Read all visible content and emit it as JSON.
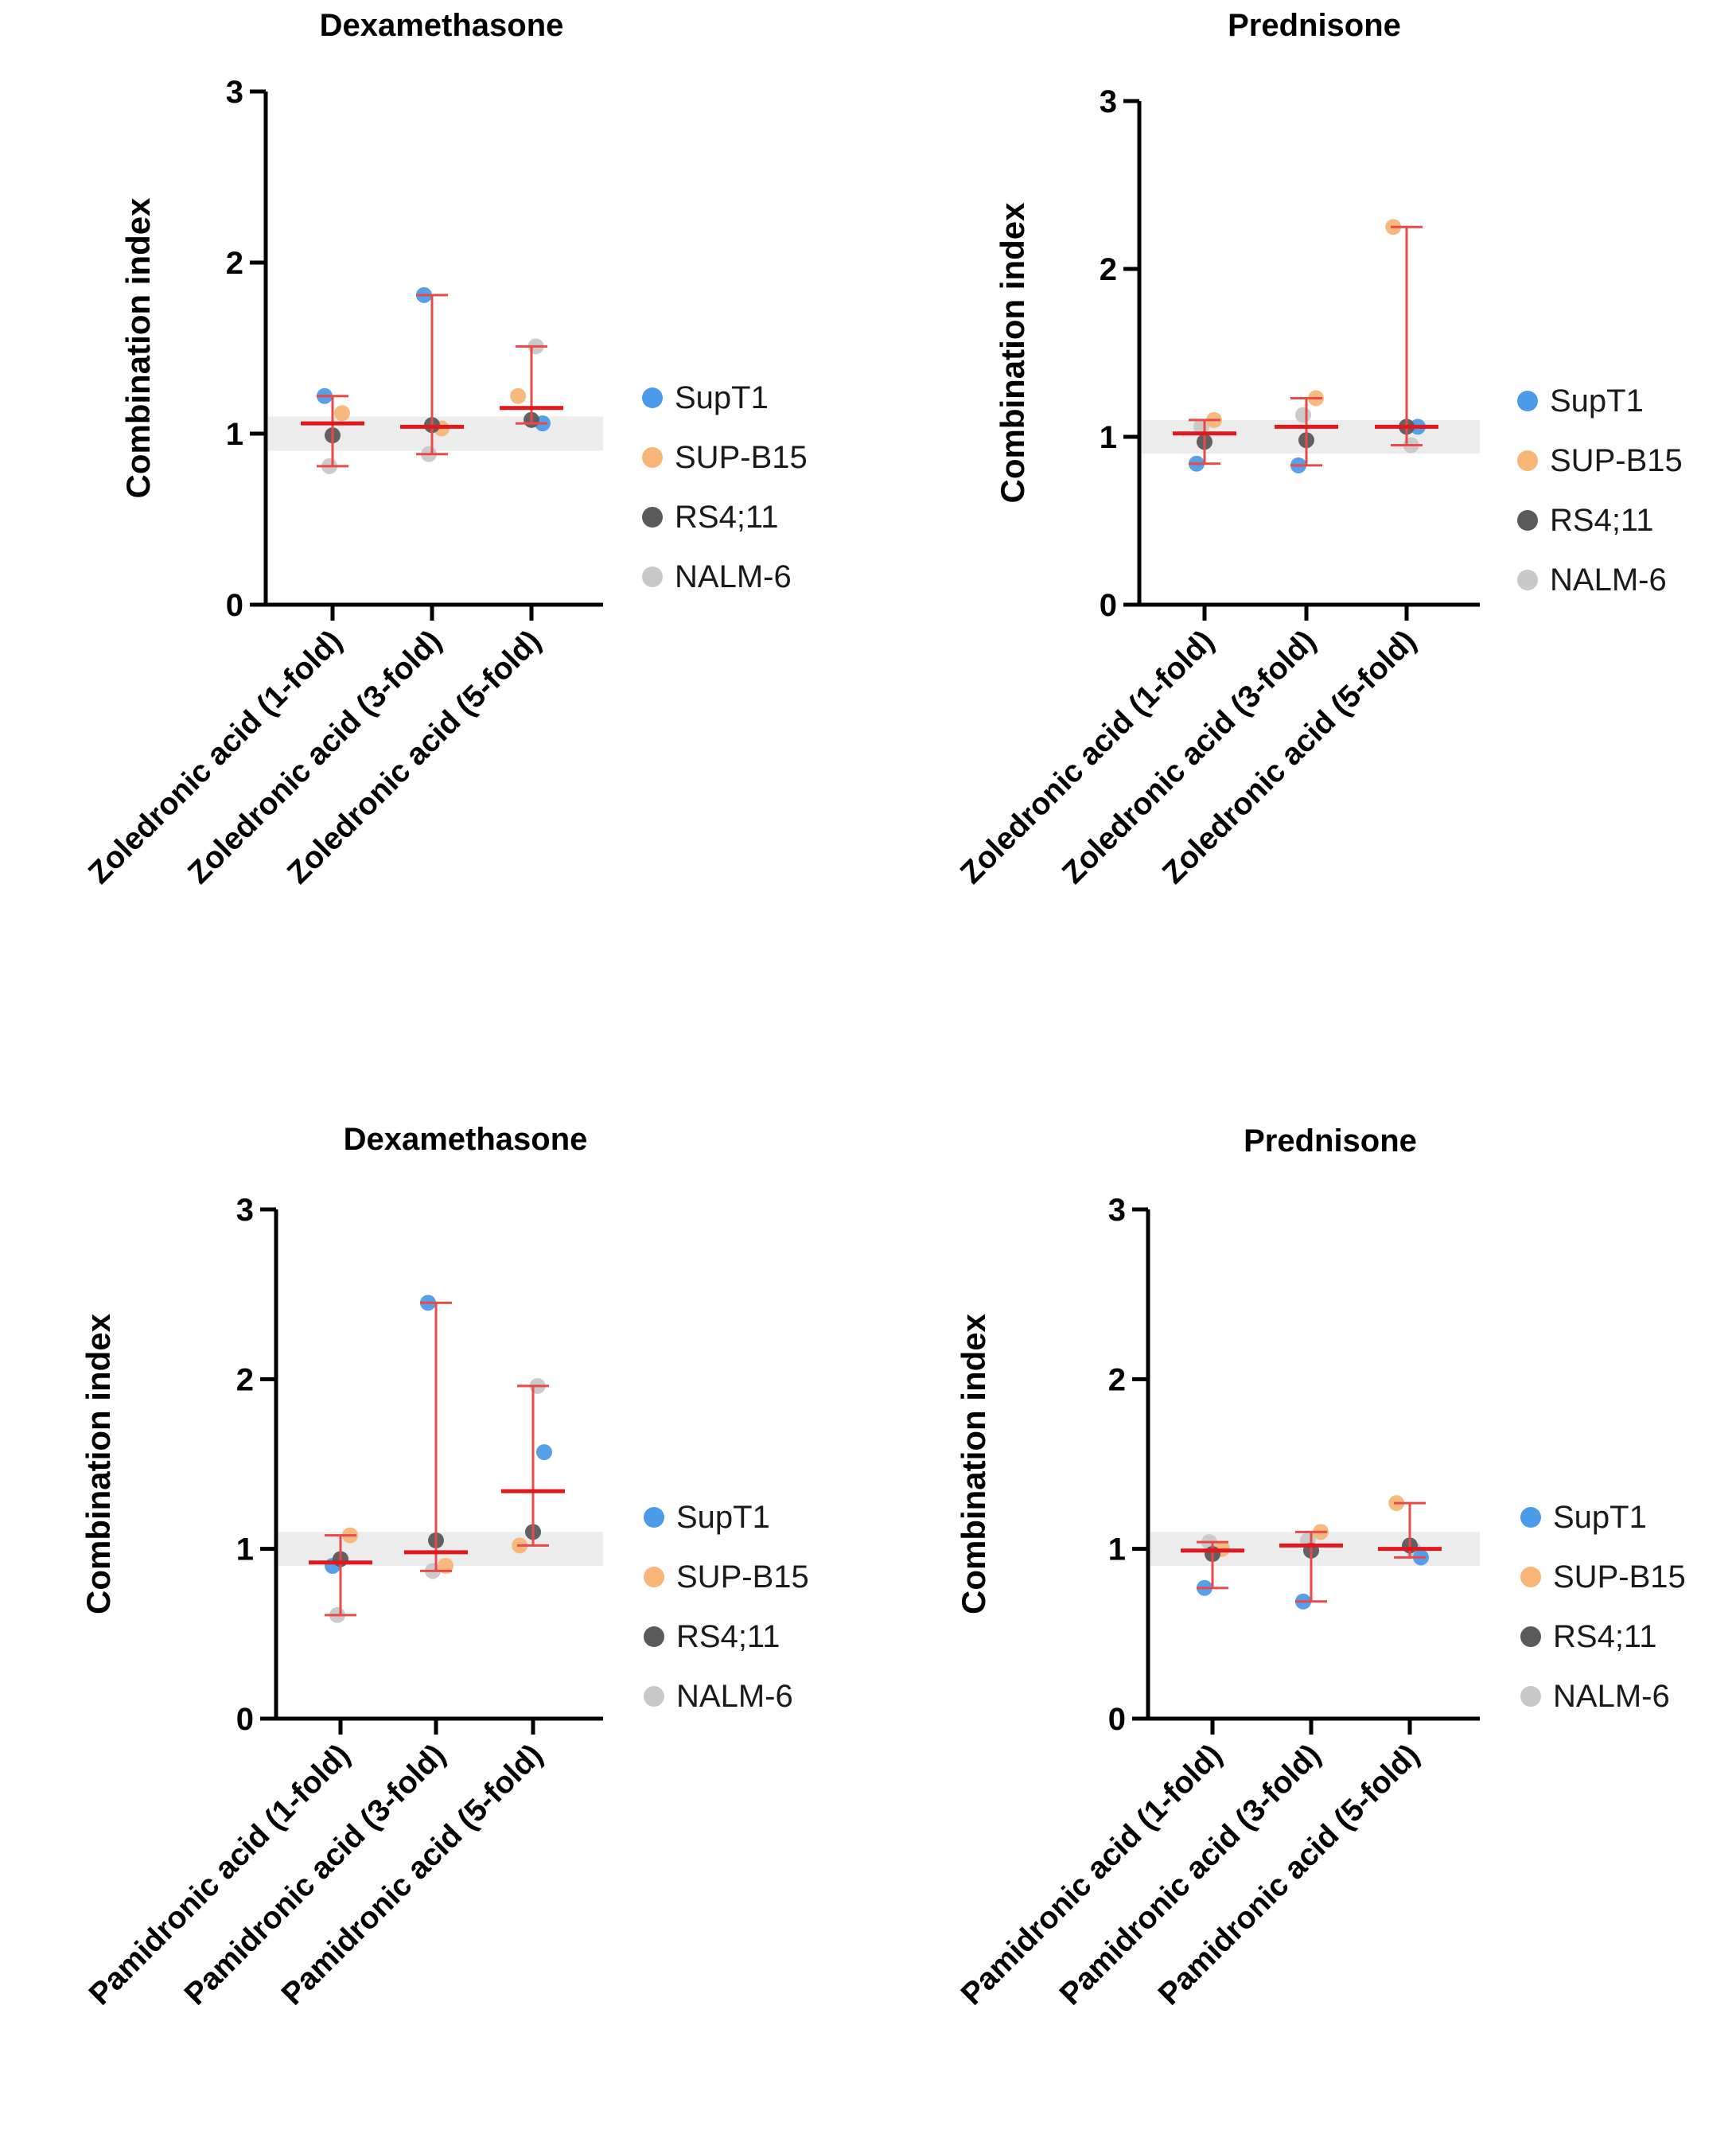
{
  "legend": [
    {
      "name": "SupT1",
      "color": "#4c9be8"
    },
    {
      "name": "SUP-B15",
      "color": "#f7b577"
    },
    {
      "name": "RS4;11",
      "color": "#5a5a5a"
    },
    {
      "name": "NALM-6",
      "color": "#c8c8c8"
    }
  ],
  "colors": {
    "median": "#e0191c",
    "range": "#e84a4a",
    "band": "#ececec",
    "axis": "#000000"
  },
  "chart_data": [
    {
      "type": "scatter",
      "title": "Dexamethasone",
      "ylabel": "Combination index",
      "ylim": [
        0,
        3
      ],
      "yticks": [
        "0",
        "1",
        "2",
        "3"
      ],
      "band": [
        0.9,
        1.1
      ],
      "categories": [
        "Zoledronic acid (1-fold)",
        "Zoledronic acid (3-fold)",
        "Zoledronic acid (5-fold)"
      ],
      "series": [
        {
          "name": "SupT1",
          "values": [
            1.22,
            1.81,
            1.06
          ]
        },
        {
          "name": "SUP-B15",
          "values": [
            1.12,
            1.03,
            1.22
          ]
        },
        {
          "name": "RS4;11",
          "values": [
            0.99,
            1.05,
            1.08
          ]
        },
        {
          "name": "NALM-6",
          "values": [
            0.81,
            0.88,
            1.51
          ]
        }
      ],
      "median": [
        1.06,
        1.04,
        1.15
      ],
      "range": [
        [
          0.81,
          1.22
        ],
        [
          0.88,
          1.81
        ],
        [
          1.06,
          1.51
        ]
      ]
    },
    {
      "type": "scatter",
      "title": "Prednisone",
      "ylabel": "Combination index",
      "ylim": [
        0,
        3
      ],
      "yticks": [
        "0",
        "1",
        "2",
        "3"
      ],
      "band": [
        0.9,
        1.1
      ],
      "categories": [
        "Zoledronic acid (1-fold)",
        "Zoledronic acid (3-fold)",
        "Zoledronic acid (5-fold)"
      ],
      "series": [
        {
          "name": "SupT1",
          "values": [
            0.84,
            0.83,
            1.06
          ]
        },
        {
          "name": "SUP-B15",
          "values": [
            1.1,
            1.23,
            2.25
          ]
        },
        {
          "name": "RS4;11",
          "values": [
            0.97,
            0.98,
            1.06
          ]
        },
        {
          "name": "NALM-6",
          "values": [
            1.06,
            1.13,
            0.95
          ]
        }
      ],
      "median": [
        1.02,
        1.06,
        1.06
      ],
      "range": [
        [
          0.84,
          1.1
        ],
        [
          0.83,
          1.23
        ],
        [
          0.95,
          2.25
        ]
      ]
    },
    {
      "type": "scatter",
      "title": "Dexamethasone",
      "ylabel": "Combination index",
      "ylim": [
        0,
        3
      ],
      "yticks": [
        "0",
        "1",
        "2",
        "3"
      ],
      "band": [
        0.9,
        1.1
      ],
      "categories": [
        "Pamidronic acid (1-fold)",
        "Pamidronic acid (3-fold)",
        "Pamidronic acid (5-fold)"
      ],
      "series": [
        {
          "name": "SupT1",
          "values": [
            0.9,
            2.45,
            1.57
          ]
        },
        {
          "name": "SUP-B15",
          "values": [
            1.08,
            0.9,
            1.02
          ]
        },
        {
          "name": "RS4;11",
          "values": [
            0.94,
            1.05,
            1.1
          ]
        },
        {
          "name": "NALM-6",
          "values": [
            0.61,
            0.87,
            1.96
          ]
        }
      ],
      "median": [
        0.92,
        0.98,
        1.34
      ],
      "range": [
        [
          0.61,
          1.08
        ],
        [
          0.87,
          2.45
        ],
        [
          1.02,
          1.96
        ]
      ]
    },
    {
      "type": "scatter",
      "title": "Prednisone",
      "ylabel": "Combination index",
      "ylim": [
        0,
        3
      ],
      "yticks": [
        "0",
        "1",
        "2",
        "3"
      ],
      "band": [
        0.9,
        1.1
      ],
      "categories": [
        "Pamidronic acid (1-fold)",
        "Pamidronic acid (3-fold)",
        "Pamidronic acid (5-fold)"
      ],
      "series": [
        {
          "name": "SupT1",
          "values": [
            0.77,
            0.69,
            0.95
          ]
        },
        {
          "name": "SUP-B15",
          "values": [
            1.0,
            1.1,
            1.27
          ]
        },
        {
          "name": "RS4;11",
          "values": [
            0.97,
            0.99,
            1.02
          ]
        },
        {
          "name": "NALM-6",
          "values": [
            1.04,
            1.05,
            0.99
          ]
        }
      ],
      "median": [
        0.99,
        1.02,
        1.0
      ],
      "range": [
        [
          0.77,
          1.04
        ],
        [
          0.69,
          1.1
        ],
        [
          0.95,
          1.27
        ]
      ]
    }
  ]
}
